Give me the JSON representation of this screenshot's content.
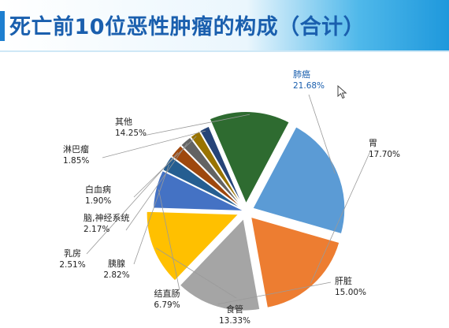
{
  "page": {
    "title": "死亡前10位恶性肿瘤的构成（合计）"
  },
  "chart_data": {
    "type": "pie",
    "title": "死亡前10位恶性肿瘤的构成（合计）",
    "legend": "none",
    "slices": [
      {
        "label": "肺癌",
        "value_label": "21.68%",
        "value": 21.68,
        "color": "#5b9bd5",
        "exploded": true,
        "accent": true
      },
      {
        "label": "胃",
        "value_label": "17.70%",
        "value": 17.7,
        "color": "#ed7d31",
        "exploded": true,
        "accent": false
      },
      {
        "label": "肝脏",
        "value_label": "15.00%",
        "value": 15.0,
        "color": "#a5a5a5",
        "exploded": true,
        "accent": false
      },
      {
        "label": "食管",
        "value_label": "13.33%",
        "value": 13.33,
        "color": "#ffc000",
        "exploded": true,
        "accent": false
      },
      {
        "label": "结直肠",
        "value_label": "6.79%",
        "value": 6.79,
        "color": "#4472c4",
        "exploded": false,
        "accent": false
      },
      {
        "label": "胰腺",
        "value_label": "2.82%",
        "value": 2.82,
        "color": "#255e91",
        "exploded": false,
        "accent": false
      },
      {
        "label": "乳房",
        "value_label": "2.51%",
        "value": 2.51,
        "color": "#9e480e",
        "exploded": false,
        "accent": false
      },
      {
        "label": "脑,神经系统",
        "value_label": "2.17%",
        "value": 2.17,
        "color": "#636363",
        "exploded": false,
        "accent": false
      },
      {
        "label": "白血病",
        "value_label": "1.90%",
        "value": 1.9,
        "color": "#997300",
        "exploded": false,
        "accent": false
      },
      {
        "label": "淋巴瘤",
        "value_label": "1.85%",
        "value": 1.85,
        "color": "#264478",
        "exploded": false,
        "accent": false
      },
      {
        "label": "其他",
        "value_label": "14.25%",
        "value": 14.25,
        "color": "#2e6b30",
        "exploded": true,
        "accent": false
      }
    ]
  }
}
